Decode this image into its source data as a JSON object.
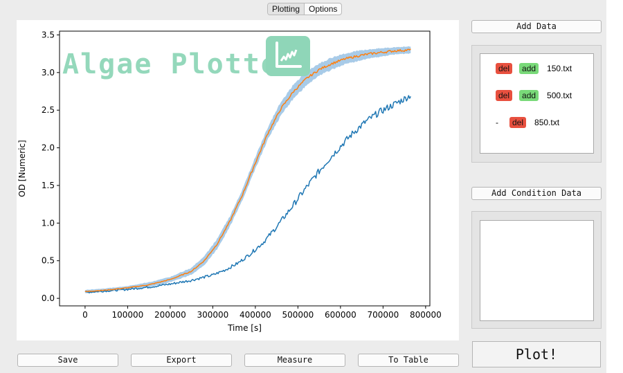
{
  "tabs": [
    {
      "label": "Plotting",
      "active": true
    },
    {
      "label": "Options",
      "active": false
    }
  ],
  "watermark": {
    "title": "Algae Plotter",
    "logo_icon": "chart-icon",
    "color": "#8fd6b8"
  },
  "chart_data": {
    "type": "line",
    "title": "",
    "xlabel": "Time [s]",
    "ylabel": "OD [Numeric]",
    "xlim": [
      -60000,
      810000
    ],
    "ylim": [
      -0.1,
      3.55
    ],
    "xticks": [
      0,
      100000,
      200000,
      300000,
      400000,
      500000,
      600000,
      700000,
      800000
    ],
    "yticks": [
      0.0,
      0.5,
      1.0,
      1.5,
      2.0,
      2.5,
      3.0,
      3.5
    ],
    "xtick_labels": [
      "0",
      "100000",
      "200000",
      "300000",
      "400000",
      "500000",
      "600000",
      "700000",
      "800000"
    ],
    "ytick_labels": [
      "0.0",
      "0.5",
      "1.0",
      "1.5",
      "2.0",
      "2.5",
      "3.0",
      "3.5"
    ],
    "grid": false,
    "series": [
      {
        "color": "#1f77b4",
        "x": [
          0,
          50000,
          100000,
          150000,
          200000,
          250000,
          300000,
          330000,
          360000,
          390000,
          420000,
          450000,
          480000,
          510000,
          540000,
          570000,
          600000,
          630000,
          660000,
          690000,
          720000,
          750000,
          765000
        ],
        "y": [
          0.08,
          0.1,
          0.12,
          0.15,
          0.19,
          0.24,
          0.31,
          0.38,
          0.47,
          0.6,
          0.75,
          0.95,
          1.17,
          1.4,
          1.62,
          1.83,
          2.02,
          2.2,
          2.35,
          2.47,
          2.56,
          2.65,
          2.7
        ]
      },
      {
        "color": "#ff7f0e",
        "band_color": "#9ec5e6",
        "x": [
          0,
          50000,
          100000,
          150000,
          200000,
          250000,
          280000,
          310000,
          340000,
          370000,
          400000,
          430000,
          460000,
          490000,
          520000,
          550000,
          580000,
          610000,
          640000,
          670000,
          700000,
          730000,
          765000
        ],
        "y": [
          0.09,
          0.11,
          0.14,
          0.18,
          0.25,
          0.36,
          0.5,
          0.72,
          1.02,
          1.38,
          1.8,
          2.2,
          2.52,
          2.75,
          2.92,
          3.04,
          3.12,
          3.18,
          3.22,
          3.25,
          3.27,
          3.29,
          3.3
        ],
        "band_halfwidth": [
          0.02,
          0.02,
          0.02,
          0.03,
          0.03,
          0.04,
          0.05,
          0.06,
          0.06,
          0.06,
          0.07,
          0.07,
          0.08,
          0.08,
          0.08,
          0.07,
          0.07,
          0.06,
          0.06,
          0.05,
          0.05,
          0.04,
          0.04
        ]
      }
    ]
  },
  "bottom_buttons": [
    "Save",
    "Export",
    "Measure",
    "To Table"
  ],
  "right_panel": {
    "add_data_label": "Add Data",
    "files": [
      {
        "prefix": "",
        "buttons": [
          "del",
          "add"
        ],
        "name": "150.txt"
      },
      {
        "prefix": "",
        "buttons": [
          "del",
          "add"
        ],
        "name": "500.txt"
      },
      {
        "prefix": "-",
        "buttons": [
          "del"
        ],
        "name": "850.txt"
      }
    ],
    "add_condition_label": "Add Condition Data",
    "plot_label": "Plot!"
  },
  "colors": {
    "del": "#e8503f",
    "add": "#79d979",
    "series1": "#1f77b4",
    "series2": "#ff7f0e",
    "band": "#9ec5e6"
  }
}
